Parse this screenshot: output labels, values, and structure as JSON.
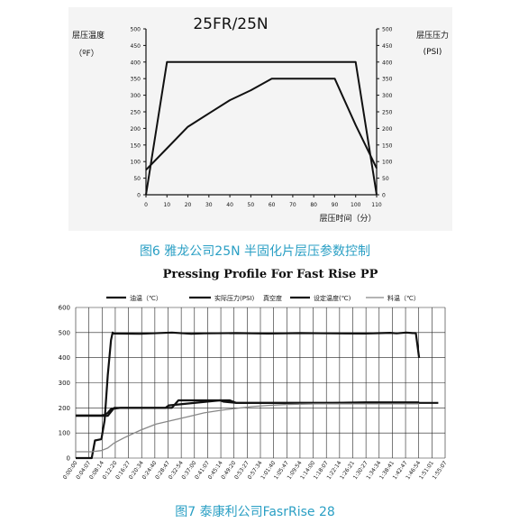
{
  "figure1": {
    "caption": "图6 雅龙公司25N 半固化片层压参数控制",
    "chart_data": {
      "type": "line",
      "title": "25FR/25N",
      "xlabel": "层压时间（分）",
      "ylabel_left_line1": "层压温度",
      "ylabel_left_line2": "（ºF）",
      "ylabel_right_line1": "层压压力",
      "ylabel_right_line2": "(PSI)",
      "xlim": [
        0,
        110
      ],
      "ylim": [
        0,
        500
      ],
      "x_ticks": [
        0,
        10,
        20,
        30,
        40,
        50,
        60,
        70,
        80,
        90,
        100,
        110
      ],
      "y_ticks": [
        0,
        50,
        100,
        150,
        200,
        250,
        300,
        350,
        400,
        450,
        500
      ],
      "series": [
        {
          "x": [
            0,
            10,
            100,
            110
          ],
          "y": [
            0,
            400,
            400,
            0
          ]
        },
        {
          "x": [
            0,
            10,
            20,
            30,
            40,
            50,
            60,
            70,
            80,
            90,
            100,
            110
          ],
          "y": [
            75,
            140,
            205,
            245,
            285,
            315,
            350,
            350,
            350,
            350,
            210,
            80
          ]
        }
      ]
    }
  },
  "figure2": {
    "caption": "图7 泰康利公司FasrRise 28",
    "chart_data": {
      "type": "line",
      "title": "Pressing Profile For Fast Rise PP",
      "ylim": [
        0,
        600
      ],
      "y_ticks": [
        0,
        100,
        200,
        300,
        400,
        500,
        600
      ],
      "categories": [
        "0:00:00",
        "0:04:07",
        "0:08:14",
        "0:12:20",
        "0:16:27",
        "0:20:34",
        "0:24:40",
        "0:28:47",
        "0:32:54",
        "0:37:00",
        "0:41:07",
        "0:45:14",
        "0:49:20",
        "0:53:27",
        "0:57:34",
        "1:01:40",
        "1:05:47",
        "1:09:54",
        "1:14:00",
        "1:18:07",
        "1:22:14",
        "1:26:21",
        "1:30:27",
        "1:34:34",
        "1:38:41",
        "1:42:47",
        "1:46:54",
        "1:51:01",
        "1:55:07"
      ],
      "legend": [
        "油温（℃）",
        "实际压力(PSI)",
        "真空度",
        "设定温度(℃)",
        "料温（℃）"
      ],
      "series": [
        {
          "name": "油温（℃）",
          "color": "#111111",
          "width": 2.2,
          "x": [
            0,
            8,
            9,
            10,
            11,
            14,
            20,
            24,
            28,
            29,
            45,
            46,
            50,
            100,
            113
          ],
          "y": [
            170,
            170,
            172,
            180,
            195,
            200,
            200,
            200,
            200,
            210,
            230,
            225,
            220,
            220,
            220
          ]
        },
        {
          "name": "实际压力(PSI)",
          "color": "#111111",
          "width": 2.2,
          "x": [
            0,
            3,
            5,
            6,
            8,
            9,
            10,
            11,
            11.5,
            12,
            20,
            30,
            36,
            40,
            50,
            60,
            70,
            80,
            90,
            98,
            100,
            103,
            105,
            106,
            107
          ],
          "y": [
            0,
            0,
            0,
            70,
            75,
            150,
            330,
            470,
            500,
            496,
            495,
            500,
            495,
            497,
            498,
            496,
            498,
            497,
            496,
            499,
            497,
            500,
            498,
            498,
            400
          ]
        },
        {
          "name": "真空度",
          "color": "#111111",
          "width": 1,
          "x": [],
          "y": []
        },
        {
          "name": "设定温度(℃)",
          "color": "#111111",
          "width": 2.2,
          "x": [
            0,
            10,
            12,
            30,
            32,
            48,
            50,
            60,
            70,
            80,
            90,
            107
          ],
          "y": [
            168,
            168,
            200,
            200,
            230,
            230,
            220,
            220,
            220,
            220,
            222,
            222
          ]
        },
        {
          "name": "料温（℃）",
          "color": "#888888",
          "width": 1.3,
          "x": [
            0,
            5,
            8,
            10,
            12,
            15,
            20,
            25,
            30,
            35,
            40,
            45,
            50,
            55,
            60,
            65,
            70,
            75,
            80,
            90,
            100,
            107
          ],
          "y": [
            25,
            25,
            30,
            40,
            60,
            80,
            110,
            135,
            150,
            165,
            180,
            190,
            198,
            205,
            210,
            213,
            215,
            216,
            216,
            216,
            216,
            216
          ]
        }
      ]
    }
  }
}
